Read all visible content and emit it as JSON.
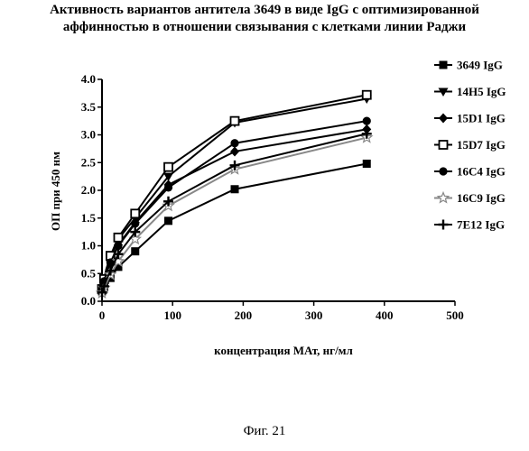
{
  "title_lines": [
    "Активность вариантов антитела 3649 в виде IgG с оптимизированной",
    "аффинностью в отношении связывания с клетками линии Раджи"
  ],
  "caption": "Фиг. 21",
  "chart_data": {
    "type": "line",
    "xlabel": "концентрация МАт, нг/мл",
    "ylabel": "ОП при 450 нм",
    "xlim": [
      0,
      500
    ],
    "ylim": [
      0,
      4.0
    ],
    "xticks": [
      0,
      100,
      200,
      300,
      400,
      500
    ],
    "yticks": [
      "0.0",
      "0.5",
      "1.0",
      "1.5",
      "2.0",
      "2.5",
      "3.0",
      "3.5",
      "4.0"
    ],
    "grid": false,
    "legend_position": "right",
    "x": [
      0,
      1.5,
      3,
      6,
      12,
      23,
      47,
      94,
      188,
      375
    ],
    "series": [
      {
        "name": "3649 IgG",
        "marker": "square",
        "color": "#000000",
        "values": [
          0.18,
          0.2,
          0.25,
          0.32,
          0.42,
          0.62,
          0.9,
          1.45,
          2.02,
          2.48
        ]
      },
      {
        "name": "14H5 IgG",
        "marker": "triangle-down",
        "color": "#000000",
        "values": [
          0.22,
          0.28,
          0.38,
          0.55,
          0.78,
          1.12,
          1.5,
          2.25,
          3.22,
          3.65
        ]
      },
      {
        "name": "15D1 IgG",
        "marker": "diamond",
        "color": "#000000",
        "values": [
          0.2,
          0.25,
          0.35,
          0.5,
          0.72,
          1.02,
          1.42,
          2.1,
          2.7,
          3.1
        ]
      },
      {
        "name": "15D7 IgG",
        "marker": "open-square",
        "color": "#000000",
        "values": [
          0.22,
          0.3,
          0.4,
          0.58,
          0.82,
          1.15,
          1.58,
          2.42,
          3.25,
          3.72
        ]
      },
      {
        "name": "16C4 IgG",
        "marker": "circle",
        "color": "#000000",
        "values": [
          0.2,
          0.26,
          0.36,
          0.5,
          0.7,
          1.0,
          1.4,
          2.05,
          2.85,
          3.25
        ]
      },
      {
        "name": "16C9 IgG",
        "marker": "open-star",
        "color": "#888888",
        "values": [
          0.15,
          0.18,
          0.24,
          0.32,
          0.48,
          0.72,
          1.12,
          1.72,
          2.38,
          2.95
        ]
      },
      {
        "name": "7E12 IgG",
        "marker": "plus",
        "color": "#000000",
        "values": [
          0.16,
          0.2,
          0.27,
          0.38,
          0.55,
          0.85,
          1.25,
          1.8,
          2.45,
          3.02
        ]
      }
    ]
  }
}
